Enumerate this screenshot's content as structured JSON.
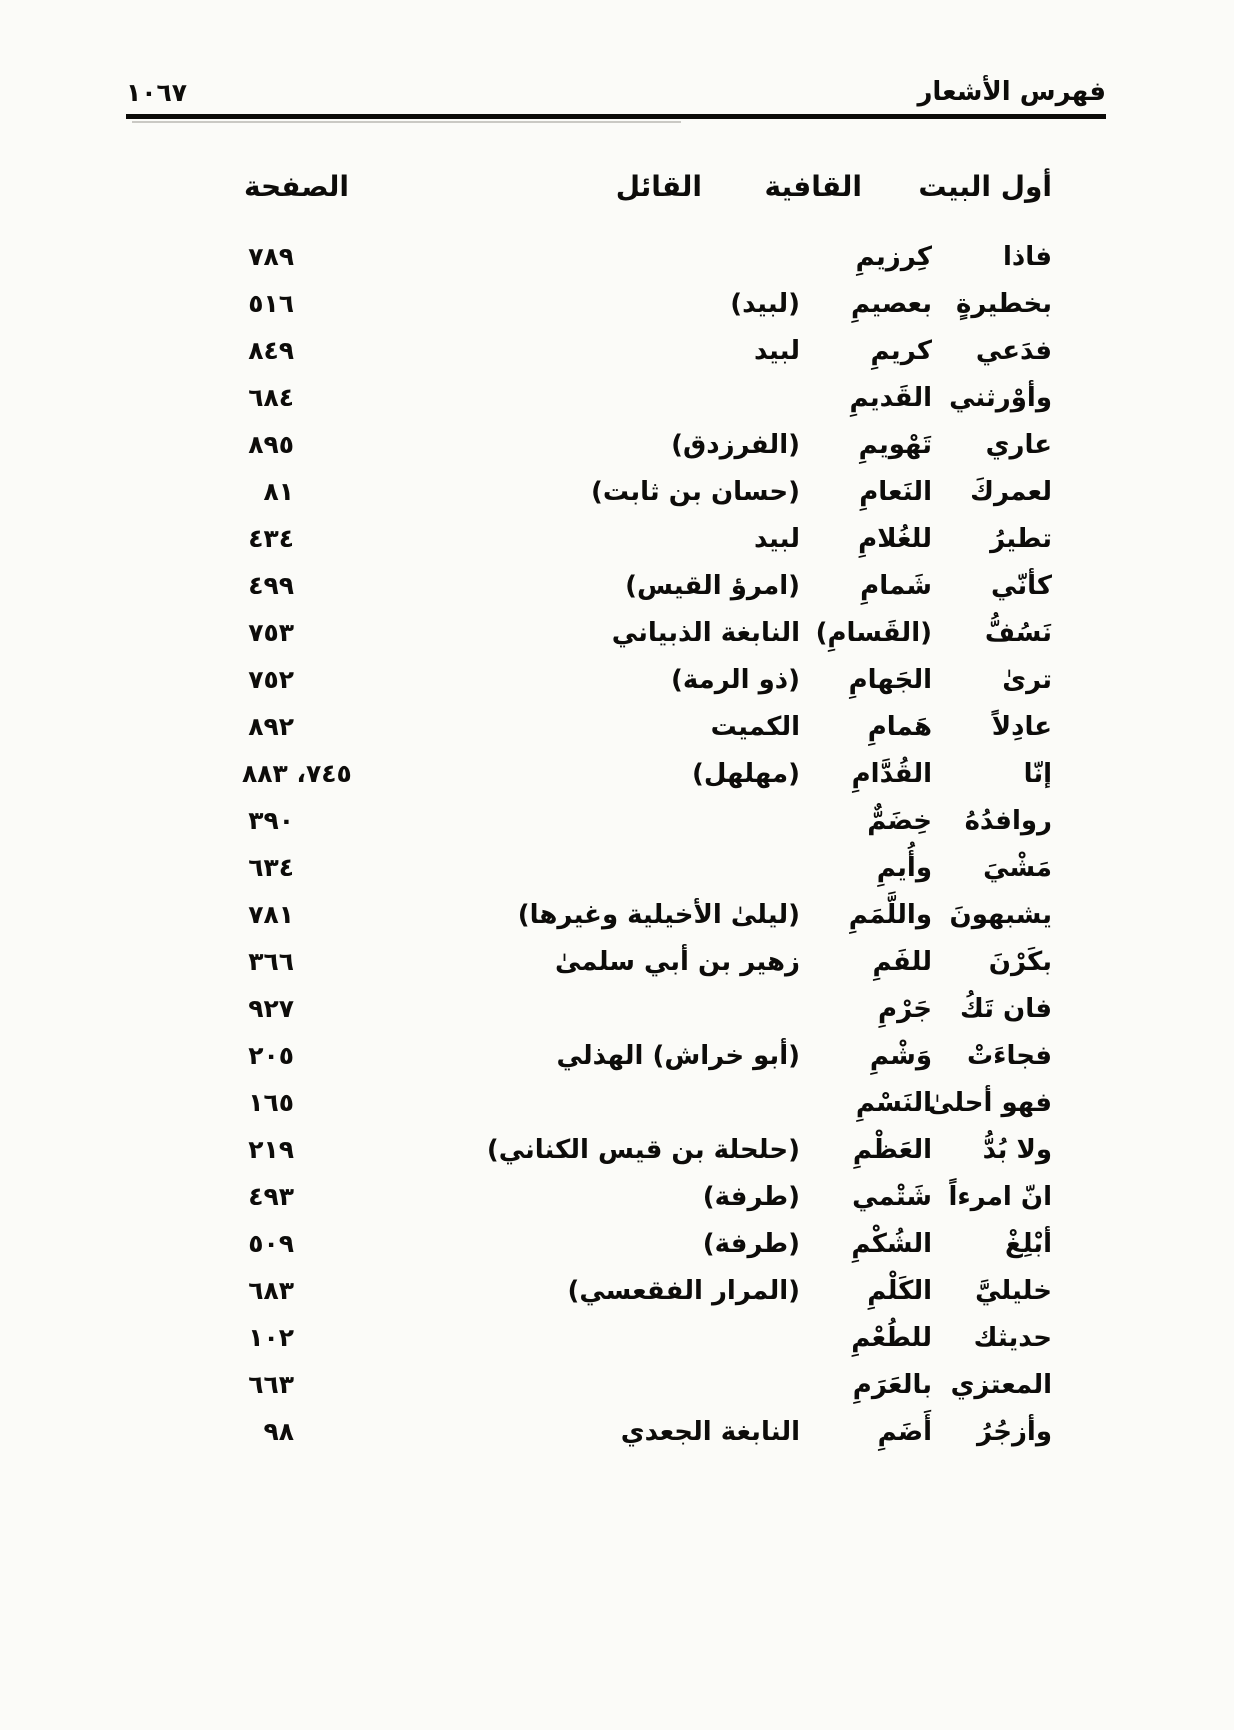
{
  "page": {
    "running_title": "فهرس الأشعار",
    "folio_number": "١٠٦٧",
    "colors": {
      "ink": "#0d0c0a",
      "paper": "#fbfbf8"
    }
  },
  "table": {
    "headers": {
      "first_verse": "أول البيت",
      "rhyme": "القافية",
      "poet": "القائل",
      "page": "الصفحة"
    },
    "rows": [
      {
        "first_verse": "فاذا",
        "rhyme": "كِرزيمِ",
        "poet": "",
        "page": "٧٨٩"
      },
      {
        "first_verse": "بخطيرةٍ",
        "rhyme": "بعصيمِ",
        "poet": "(لبيد)",
        "page": "٥١٦"
      },
      {
        "first_verse": "فدَعي",
        "rhyme": "كريمِ",
        "poet": "لبيد",
        "page": "٨٤٩"
      },
      {
        "first_verse": "وأوْرثني",
        "rhyme": "القَديمِ",
        "poet": "",
        "page": "٦٨٤"
      },
      {
        "first_verse": "عاري",
        "rhyme": "تَهْويمِ",
        "poet": "(الفرزدق)",
        "page": "٨٩٥"
      },
      {
        "first_verse": "لعمركَ",
        "rhyme": "النَعامِ",
        "poet": "(حسان بن ثابت)",
        "page": "٨١"
      },
      {
        "first_verse": "تطيرُ",
        "rhyme": "للغُلامِ",
        "poet": "لبيد",
        "page": "٤٣٤"
      },
      {
        "first_verse": "كأنّي",
        "rhyme": "شَمامِ",
        "poet": "(امرؤ القيس)",
        "page": "٤٩٩"
      },
      {
        "first_verse": "نَسُفُّ",
        "rhyme": "(القَسامِ)",
        "poet": "النابغة الذبياني",
        "page": "٧٥٣"
      },
      {
        "first_verse": "ترىٰ",
        "rhyme": "الجَهامِ",
        "poet": "(ذو الرمة)",
        "page": "٧٥٢"
      },
      {
        "first_verse": "عادِلاً",
        "rhyme": "هَمامِ",
        "poet": "الكميت",
        "page": "٨٩٢"
      },
      {
        "first_verse": "إنّا",
        "rhyme": "القُدَّامِ",
        "poet": "(مهلهل)",
        "page": "٧٤٥، ٨٨٣"
      },
      {
        "first_verse": "روافدُهُ",
        "rhyme": "خِضَمٌّ",
        "poet": "",
        "page": "٣٩٠"
      },
      {
        "first_verse": "مَشْيَ",
        "rhyme": "وأُيمِ",
        "poet": "",
        "page": "٦٣٤"
      },
      {
        "first_verse": "يشبهونَ",
        "rhyme": "واللَّمَمِ",
        "poet": "(ليلىٰ الأخيلية وغيرها)",
        "page": "٧٨١"
      },
      {
        "first_verse": "بكَرْنَ",
        "rhyme": "للفَمِ",
        "poet": "زهير بن أبي سلمىٰ",
        "page": "٣٦٦"
      },
      {
        "first_verse": "فان تَكُ",
        "rhyme": "جَرْمِ",
        "poet": "",
        "page": "٩٢٧"
      },
      {
        "first_verse": "فجاءَتْ",
        "rhyme": "وَشْمِ",
        "poet": "(أبو خراش) الهذلي",
        "page": "٢٠٥"
      },
      {
        "first_verse": "فهو أحلىٰ",
        "rhyme": "النَسْمِ",
        "poet": "",
        "page": "١٦٥"
      },
      {
        "first_verse": "ولا بُدُّ",
        "rhyme": "العَظْمِ",
        "poet": "(حلحلة بن قيس الكناني)",
        "page": "٢١٩"
      },
      {
        "first_verse": "انّ امرءاً",
        "rhyme": "شَتْمي",
        "poet": "(طرفة)",
        "page": "٤٩٣"
      },
      {
        "first_verse": "أبْلِغْ",
        "rhyme": "الشُكْمِ",
        "poet": "(طرفة)",
        "page": "٥٠٩"
      },
      {
        "first_verse": "خليليَّ",
        "rhyme": "الكَلْمِ",
        "poet": "(المرار الفقعسي)",
        "page": "٦٨٣"
      },
      {
        "first_verse": "حديثك",
        "rhyme": "للطُعْمِ",
        "poet": "",
        "page": "١٠٢"
      },
      {
        "first_verse": "المعتزي",
        "rhyme": "بالعَرَمِ",
        "poet": "",
        "page": "٦٦٣"
      },
      {
        "first_verse": "وأزجُرُ",
        "rhyme": "أَضَمِ",
        "poet": "النابغة الجعدي",
        "page": "٩٨"
      }
    ]
  }
}
